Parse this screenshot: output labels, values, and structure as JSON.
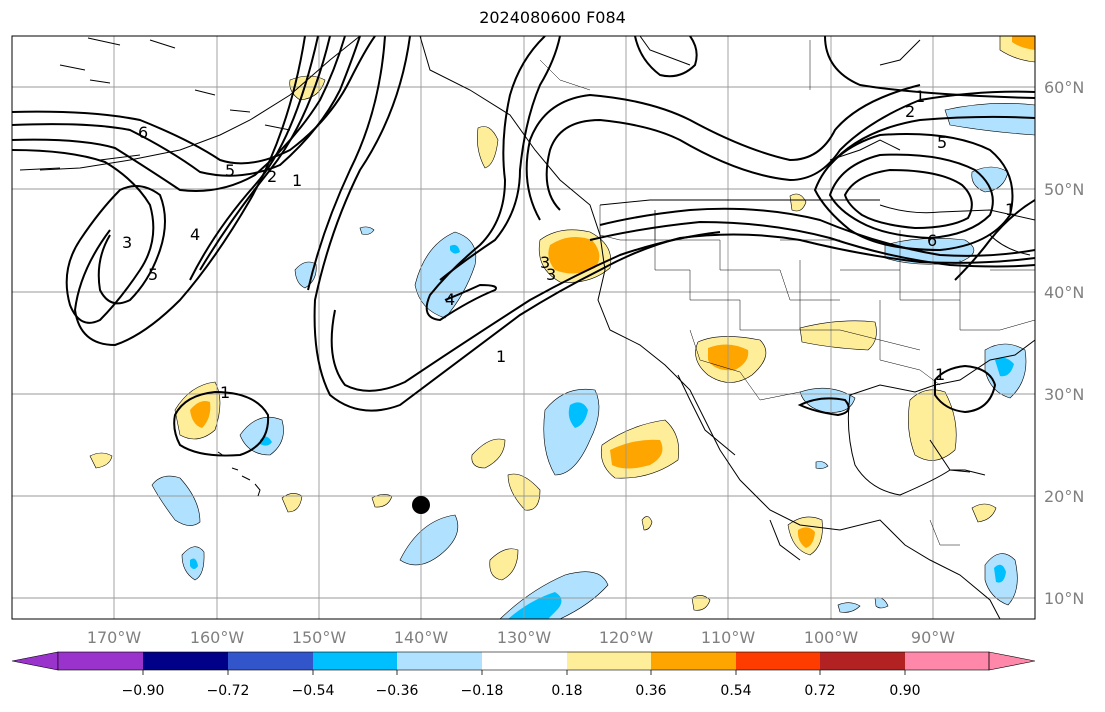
{
  "title": "2024080600 F084",
  "map": {
    "lon_labels": [
      "170°W",
      "160°W",
      "150°W",
      "140°W",
      "130°W",
      "120°W",
      "110°W",
      "100°W",
      "90°W"
    ],
    "lat_labels": [
      "60°N",
      "50°N",
      "40°N",
      "30°N",
      "20°N",
      "10°N"
    ],
    "contour_labels": [
      "1",
      "2",
      "5",
      "6",
      "2",
      "1",
      "5",
      "4",
      "3",
      "5",
      "3",
      "4",
      "1",
      "1",
      "3",
      "1",
      "1",
      "6"
    ],
    "colors": {
      "neg_dark": "#00bfff",
      "neg_light": "#b0e2ff",
      "pos_light": "#ffee99",
      "pos_dark": "#ffa500",
      "land_line": "#000000",
      "grid": "#999999"
    }
  },
  "colorbar": {
    "ticks": [
      "−0.90",
      "−0.72",
      "−0.54",
      "−0.36",
      "−0.18",
      "0.18",
      "0.36",
      "0.54",
      "0.72",
      "0.90"
    ],
    "colors": [
      "#9933cc",
      "#000088",
      "#3355cc",
      "#00bfff",
      "#b0e2ff",
      "#ffffff",
      "#ffee99",
      "#ffa500",
      "#ff3c00",
      "#b22222",
      "#ff88aa"
    ]
  }
}
